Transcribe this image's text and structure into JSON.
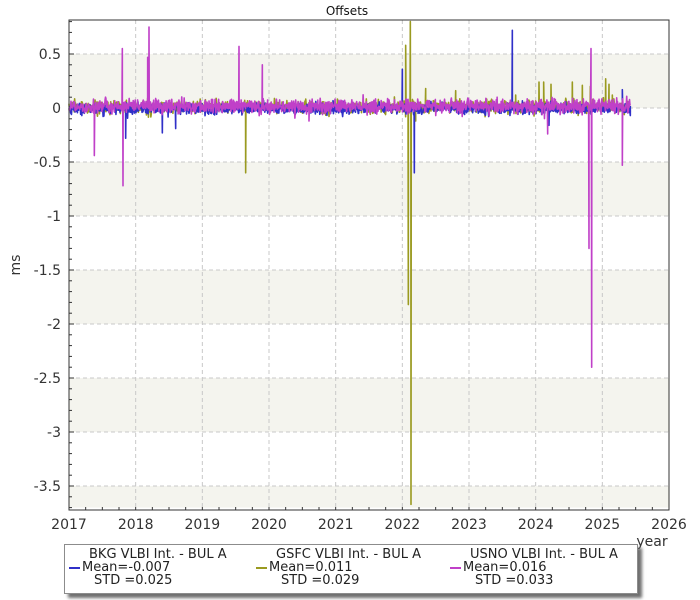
{
  "chart_data": {
    "type": "line",
    "title": "Offsets",
    "xlabel": "year",
    "ylabel": "ms",
    "xlim": [
      2017,
      2026
    ],
    "ylim": [
      -3.7,
      0.8
    ],
    "x_ticks": [
      "2017",
      "2018",
      "2019",
      "2020",
      "2021",
      "2022",
      "2023",
      "2024",
      "2025",
      "2026"
    ],
    "y_ticks": [
      "0.5",
      "0",
      "-0.5",
      "-1",
      "-1.5",
      "-2",
      "-2.5",
      "-3",
      "-3.5"
    ],
    "grid": true,
    "legend_position": "bottom",
    "series": [
      {
        "name": "BKG VLBI Int. - BUL A",
        "mean_label": "Mean=-0.007",
        "std_label": "STD =0.025",
        "color": "#3030c8",
        "x_range": [
          2017.0,
          2025.42
        ],
        "baseline_mean": -0.007,
        "baseline_std": 0.025,
        "spikes": [
          {
            "x": 2017.85,
            "y": -0.28
          },
          {
            "x": 2018.4,
            "y": -0.23
          },
          {
            "x": 2018.6,
            "y": -0.19
          },
          {
            "x": 2022.0,
            "y": 0.36
          },
          {
            "x": 2022.18,
            "y": -0.6
          },
          {
            "x": 2023.65,
            "y": 0.72
          },
          {
            "x": 2024.2,
            "y": -0.16
          },
          {
            "x": 2025.3,
            "y": 0.17
          },
          {
            "x": 2025.42,
            "y": -0.07
          }
        ]
      },
      {
        "name": "GSFC VLBI Int. - BUL A",
        "mean_label": "Mean=0.011",
        "std_label": "STD =0.029",
        "color": "#9a9a20",
        "x_range": [
          2017.0,
          2025.42
        ],
        "baseline_mean": 0.011,
        "baseline_std": 0.029,
        "spikes": [
          {
            "x": 2019.65,
            "y": -0.6
          },
          {
            "x": 2022.05,
            "y": 0.58
          },
          {
            "x": 2022.09,
            "y": -1.82
          },
          {
            "x": 2022.12,
            "y": 0.8
          },
          {
            "x": 2022.13,
            "y": -3.67
          },
          {
            "x": 2022.2,
            "y": -0.12
          },
          {
            "x": 2022.35,
            "y": 0.18
          },
          {
            "x": 2022.8,
            "y": 0.16
          },
          {
            "x": 2023.7,
            "y": 0.12
          },
          {
            "x": 2024.05,
            "y": 0.24
          },
          {
            "x": 2024.12,
            "y": 0.24
          },
          {
            "x": 2024.23,
            "y": 0.22
          },
          {
            "x": 2024.55,
            "y": 0.24
          },
          {
            "x": 2024.7,
            "y": 0.21
          },
          {
            "x": 2024.82,
            "y": 0.2
          },
          {
            "x": 2025.05,
            "y": 0.27
          },
          {
            "x": 2025.1,
            "y": 0.22
          },
          {
            "x": 2025.15,
            "y": 0.12
          }
        ]
      },
      {
        "name": "USNO VLBI Int. - BUL A",
        "mean_label": "Mean=0.016",
        "std_label": "STD =0.033",
        "color": "#c040c8",
        "x_range": [
          2017.0,
          2025.42
        ],
        "baseline_mean": 0.016,
        "baseline_std": 0.033,
        "spikes": [
          {
            "x": 2017.38,
            "y": -0.44
          },
          {
            "x": 2017.8,
            "y": 0.55
          },
          {
            "x": 2017.81,
            "y": -0.72
          },
          {
            "x": 2018.18,
            "y": 0.47
          },
          {
            "x": 2018.2,
            "y": 0.75
          },
          {
            "x": 2019.55,
            "y": 0.57
          },
          {
            "x": 2019.9,
            "y": 0.4
          },
          {
            "x": 2020.6,
            "y": -0.12
          },
          {
            "x": 2024.18,
            "y": -0.24
          },
          {
            "x": 2024.8,
            "y": -1.3
          },
          {
            "x": 2024.83,
            "y": 0.55
          },
          {
            "x": 2024.84,
            "y": -2.4
          },
          {
            "x": 2025.3,
            "y": -0.53
          }
        ]
      }
    ]
  }
}
